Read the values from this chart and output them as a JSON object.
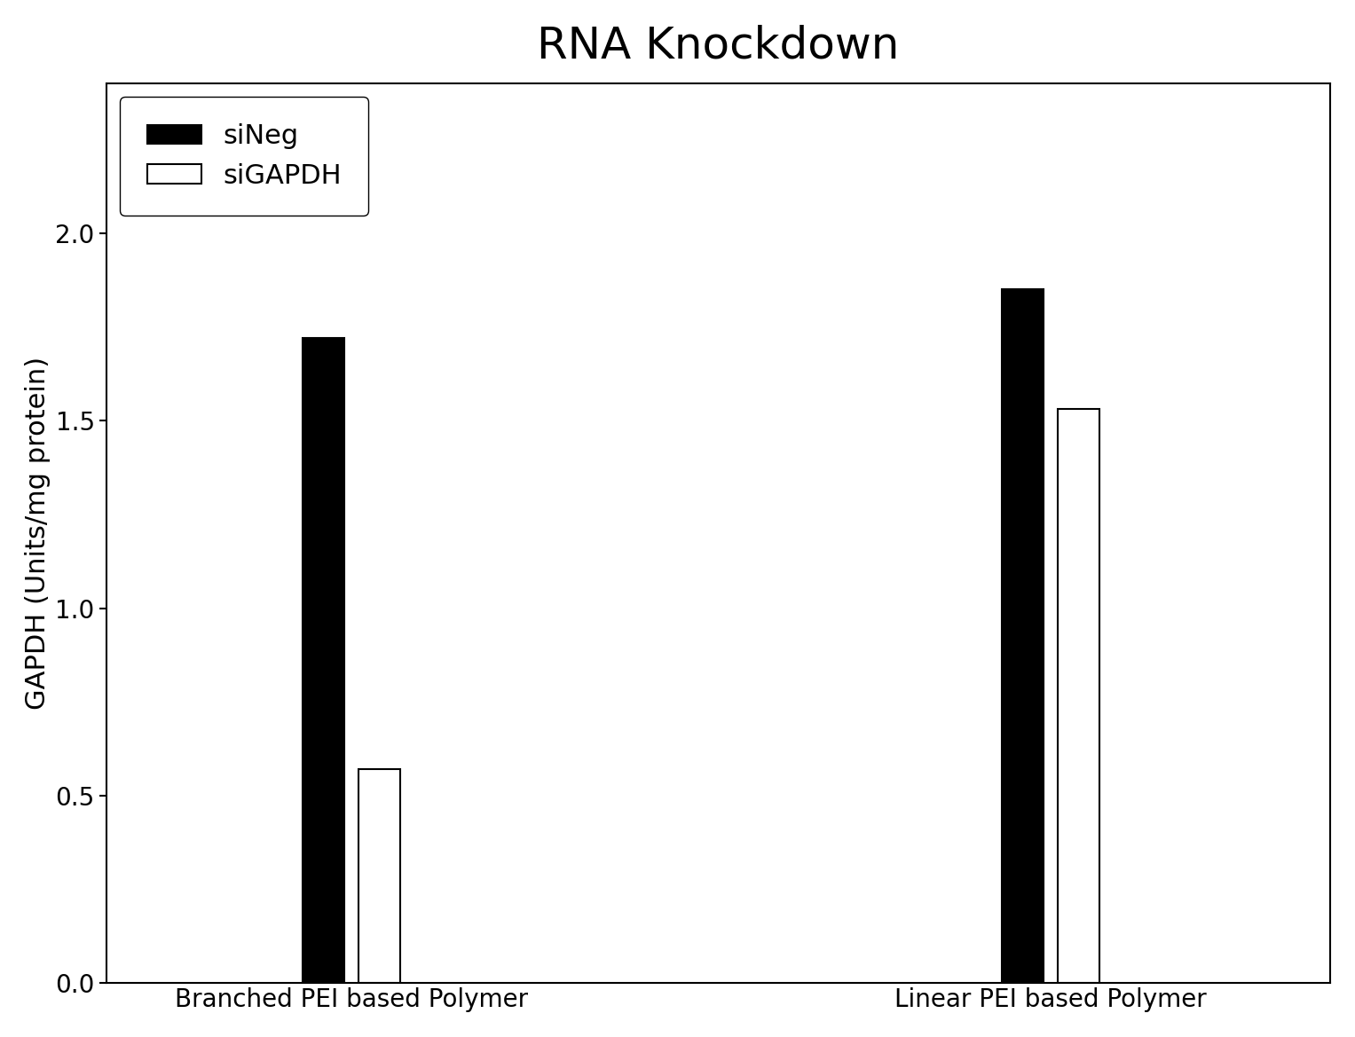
{
  "title": "RNA Knockdown",
  "title_fontsize": 36,
  "ylabel": "GAPDH (Units/mg protein)",
  "ylabel_fontsize": 22,
  "xlabel_fontsize": 20,
  "ylim": [
    0,
    2.4
  ],
  "yticks": [
    0.0,
    0.5,
    1.0,
    1.5,
    2.0
  ],
  "groups": [
    "Branched PEI based Polymer",
    "Linear PEI based Polymer"
  ],
  "series": [
    "siNeg",
    "siGAPDH"
  ],
  "values": {
    "siNeg": [
      1.72,
      1.85
    ],
    "siGAPDH": [
      0.57,
      1.53
    ]
  },
  "bar_colors": {
    "siNeg": "#000000",
    "siGAPDH": "#ffffff"
  },
  "bar_edgecolors": {
    "siNeg": "#000000",
    "siGAPDH": "#000000"
  },
  "bar_width": 0.12,
  "group_centers": [
    1.0,
    3.0
  ],
  "xlim": [
    0.3,
    3.8
  ],
  "legend_fontsize": 22,
  "tick_fontsize": 20,
  "background_color": "#ffffff",
  "bar_linewidth": 1.5,
  "bar_gap": 0.04
}
